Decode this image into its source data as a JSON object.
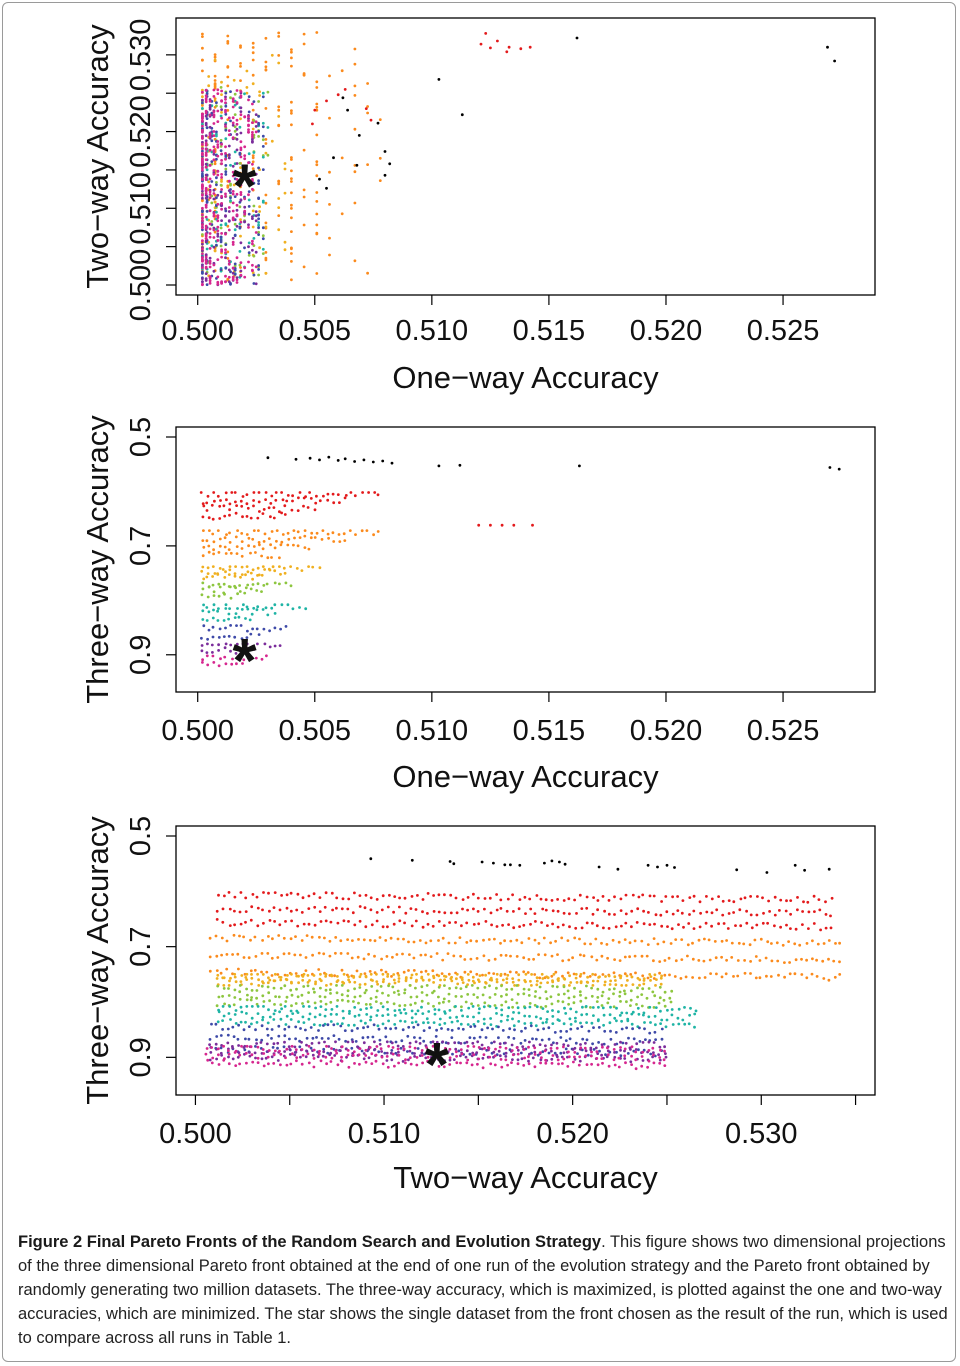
{
  "chart_data": [
    {
      "type": "scatter",
      "title": "",
      "xlabel": "One−way Accuracy",
      "ylabel": "Two−way Accuracy",
      "xlim": [
        0.4995,
        0.5285
      ],
      "ylim": [
        0.5,
        0.5335
      ],
      "x_ticks": [
        0.5,
        0.505,
        0.51,
        0.515,
        0.52,
        0.525
      ],
      "x_tick_labels": [
        "0.500",
        "0.505",
        "0.510",
        "0.515",
        "0.520",
        "0.525"
      ],
      "y_ticks": [
        0.5,
        0.505,
        0.51,
        0.515,
        0.52,
        0.525,
        0.53
      ],
      "y_tick_labels": [
        "0.500",
        "",
        "0.510",
        "",
        "0.520",
        "",
        "0.530"
      ],
      "star": {
        "x": 0.502,
        "y": 0.513
      },
      "series": [
        {
          "color": "#000000",
          "points": [
            [
              0.5162,
              0.5322
            ],
            [
              0.5269,
              0.531
            ],
            [
              0.5272,
              0.5292
            ],
            [
              0.5103,
              0.5268
            ],
            [
              0.5113,
              0.5222
            ],
            [
              0.5069,
              0.5195
            ],
            [
              0.5077,
              0.5211
            ],
            [
              0.508,
              0.5174
            ],
            [
              0.5082,
              0.5158
            ],
            [
              0.5068,
              0.5156
            ],
            [
              0.5062,
              0.5244
            ],
            [
              0.5064,
              0.5228
            ],
            [
              0.5058,
              0.5166
            ],
            [
              0.5055,
              0.5126
            ],
            [
              0.5052,
              0.5138
            ],
            [
              0.508,
              0.5143
            ]
          ]
        },
        {
          "color": "#e31a1c",
          "points": [
            [
              0.5123,
              0.5328
            ],
            [
              0.5128,
              0.5318
            ],
            [
              0.5133,
              0.531
            ],
            [
              0.5138,
              0.5308
            ],
            [
              0.5142,
              0.531
            ],
            [
              0.5125,
              0.5309
            ],
            [
              0.5121,
              0.5314
            ],
            [
              0.5132,
              0.5304
            ],
            [
              0.5072,
              0.523
            ],
            [
              0.5074,
              0.5215
            ],
            [
              0.506,
              0.5248
            ],
            [
              0.5063,
              0.5255
            ],
            [
              0.5055,
              0.524
            ],
            [
              0.505,
              0.5228
            ],
            [
              0.5049,
              0.521
            ]
          ]
        }
      ],
      "clusters": [
        {
          "color": "#fb8a1c",
          "x_range": [
            0.5002,
            0.5078
          ],
          "y_range": [
            0.5005,
            0.533
          ],
          "count": 210
        },
        {
          "color": "#f0b020",
          "x_range": [
            0.5002,
            0.504
          ],
          "y_range": [
            0.501,
            0.53
          ],
          "count": 80
        },
        {
          "color": "#8dc63f",
          "x_range": [
            0.5002,
            0.503
          ],
          "y_range": [
            0.501,
            0.526
          ],
          "count": 90
        },
        {
          "color": "#1fb4a5",
          "x_range": [
            0.5002,
            0.503
          ],
          "y_range": [
            0.501,
            0.526
          ],
          "count": 90
        },
        {
          "color": "#3e4aa8",
          "x_range": [
            0.5002,
            0.503
          ],
          "y_range": [
            0.5,
            0.526
          ],
          "count": 150
        },
        {
          "color": "#7b2d9b",
          "x_range": [
            0.5002,
            0.5025
          ],
          "y_range": [
            0.5,
            0.5255
          ],
          "count": 150
        },
        {
          "color": "#d6278f",
          "x_range": [
            0.5002,
            0.5025
          ],
          "y_range": [
            0.5,
            0.5255
          ],
          "count": 300
        }
      ]
    },
    {
      "type": "scatter",
      "title": "",
      "xlabel": "One−way Accuracy",
      "ylabel": "Three−way Accuracy",
      "xlim": [
        0.4995,
        0.5285
      ],
      "ylim": [
        0.5,
        0.95
      ],
      "y_reversed": true,
      "x_ticks": [
        0.5,
        0.505,
        0.51,
        0.515,
        0.52,
        0.525
      ],
      "x_tick_labels": [
        "0.500",
        "0.505",
        "0.510",
        "0.515",
        "0.520",
        "0.525"
      ],
      "y_ticks": [
        0.5,
        0.7,
        0.9
      ],
      "y_tick_labels": [
        "0.5",
        "0.7",
        "0.9"
      ],
      "star": {
        "x": 0.502,
        "y": 0.91
      },
      "series": [
        {
          "color": "#000000",
          "points": [
            [
              0.503,
              0.538
            ],
            [
              0.5042,
              0.541
            ],
            [
              0.5048,
              0.539
            ],
            [
              0.5052,
              0.542
            ],
            [
              0.5056,
              0.537
            ],
            [
              0.506,
              0.543
            ],
            [
              0.5063,
              0.54
            ],
            [
              0.5067,
              0.545
            ],
            [
              0.5071,
              0.542
            ],
            [
              0.5075,
              0.546
            ],
            [
              0.5079,
              0.544
            ],
            [
              0.5083,
              0.548
            ],
            [
              0.5103,
              0.553
            ],
            [
              0.5112,
              0.552
            ],
            [
              0.5163,
              0.553
            ],
            [
              0.527,
              0.556
            ],
            [
              0.5274,
              0.559
            ]
          ]
        },
        {
          "color": "#e31a1c",
          "points": [
            [
              0.512,
              0.662
            ],
            [
              0.5125,
              0.662
            ],
            [
              0.513,
              0.662
            ],
            [
              0.5135,
              0.662
            ],
            [
              0.5143,
              0.662
            ]
          ]
        }
      ],
      "bands": [
        {
          "color": "#e31a1c",
          "y_range": [
            0.602,
            0.658
          ],
          "x_start": 0.5002,
          "x_end": [
            0.508,
            0.5065,
            0.5052,
            0.504
          ]
        },
        {
          "color": "#fb8a1c",
          "y_range": [
            0.672,
            0.73
          ],
          "x_start": 0.5002,
          "x_end": [
            0.508,
            0.5065,
            0.505,
            0.5037
          ]
        },
        {
          "color": "#f0b020",
          "y_range": [
            0.738,
            0.762
          ],
          "x_start": 0.5002,
          "x_end": [
            0.5054,
            0.504,
            0.503
          ]
        },
        {
          "color": "#8dc63f",
          "y_range": [
            0.768,
            0.8
          ],
          "x_start": 0.5002,
          "x_end": [
            0.5042,
            0.503,
            0.5022
          ]
        },
        {
          "color": "#1fb4a5",
          "y_range": [
            0.808,
            0.84
          ],
          "x_start": 0.5002,
          "x_end": [
            0.5048,
            0.5035,
            0.5025
          ]
        },
        {
          "color": "#3e4aa8",
          "y_range": [
            0.846,
            0.878
          ],
          "x_start": 0.5002,
          "x_end": [
            0.504,
            0.5028
          ]
        },
        {
          "color": "#7b2d9b",
          "y_range": [
            0.88,
            0.9
          ],
          "x_start": 0.5002,
          "x_end": [
            0.5038,
            0.5026
          ]
        },
        {
          "color": "#d6278f",
          "y_range": [
            0.9,
            0.922
          ],
          "x_start": 0.5002,
          "x_end": [
            0.5032,
            0.5022
          ]
        }
      ]
    },
    {
      "type": "scatter",
      "title": "",
      "xlabel": "Two−way Accuracy",
      "ylabel": "Three−way Accuracy",
      "xlim": [
        0.4995,
        0.5355
      ],
      "ylim": [
        0.5,
        0.95
      ],
      "y_reversed": true,
      "x_ticks": [
        0.5,
        0.505,
        0.51,
        0.515,
        0.52,
        0.525,
        0.53,
        0.535
      ],
      "x_tick_labels": [
        "0.500",
        "",
        "0.510",
        "",
        "0.520",
        "",
        "0.530",
        ""
      ],
      "y_ticks": [
        0.5,
        0.7,
        0.9
      ],
      "y_tick_labels": [
        "0.5",
        "0.7",
        "0.9"
      ],
      "star": {
        "x": 0.5128,
        "y": 0.912
      },
      "series": [
        {
          "color": "#000000",
          "points": [
            [
              0.5093,
              0.541
            ],
            [
              0.5115,
              0.544
            ],
            [
              0.5135,
              0.546
            ],
            [
              0.5137,
              0.55
            ],
            [
              0.5152,
              0.547
            ],
            [
              0.5158,
              0.549
            ],
            [
              0.5164,
              0.552
            ],
            [
              0.5167,
              0.552
            ],
            [
              0.5172,
              0.553
            ],
            [
              0.5185,
              0.549
            ],
            [
              0.5189,
              0.545
            ],
            [
              0.5193,
              0.547
            ],
            [
              0.5196,
              0.551
            ],
            [
              0.5214,
              0.556
            ],
            [
              0.5224,
              0.56
            ],
            [
              0.524,
              0.553
            ],
            [
              0.5245,
              0.556
            ],
            [
              0.525,
              0.553
            ],
            [
              0.5254,
              0.557
            ],
            [
              0.5287,
              0.561
            ],
            [
              0.5303,
              0.566
            ],
            [
              0.5318,
              0.553
            ],
            [
              0.5323,
              0.562
            ],
            [
              0.5336,
              0.56
            ]
          ]
        }
      ],
      "bands": [
        {
          "color": "#e31a1c",
          "y_range": [
            0.602,
            0.676
          ],
          "x_start": 0.5012,
          "x_end": 0.534
        },
        {
          "color": "#fb8a1c",
          "y_range": [
            0.678,
            0.77
          ],
          "x_start": 0.5008,
          "x_end": 0.5345
        },
        {
          "color": "#f0b020",
          "y_range": [
            0.75,
            0.77
          ],
          "x_start": 0.5012,
          "x_end": 0.525
        },
        {
          "color": "#8dc63f",
          "y_range": [
            0.77,
            0.812
          ],
          "x_start": 0.5012,
          "x_end": 0.5255
        },
        {
          "color": "#1fb4a5",
          "y_range": [
            0.808,
            0.846
          ],
          "x_start": 0.5012,
          "x_end": 0.5268
        },
        {
          "color": "#3e4aa8",
          "y_range": [
            0.84,
            0.902
          ],
          "x_start": 0.5008,
          "x_end": 0.525
        },
        {
          "color": "#7b2d9b",
          "y_range": [
            0.872,
            0.91
          ],
          "x_start": 0.5008,
          "x_end": 0.5252
        },
        {
          "color": "#d6278f",
          "y_range": [
            0.88,
            0.922
          ],
          "x_start": 0.5006,
          "x_end": 0.5252
        }
      ]
    }
  ],
  "caption": {
    "title": "Figure 2 Final Pareto Fronts of the Random Search and Evolution Strategy",
    "body": ". This figure shows two dimensional projections of the three dimensional Pareto front obtained at the end of one run of the evolution strategy and the Pareto front obtained by randomly generating two million datasets. The three-way accuracy, which is maximized, is plotted against the one and two-way accuracies, which are minimized. The star shows the single dataset from the front chosen as the result of the run, which is used to compare across all runs in Table 1."
  }
}
